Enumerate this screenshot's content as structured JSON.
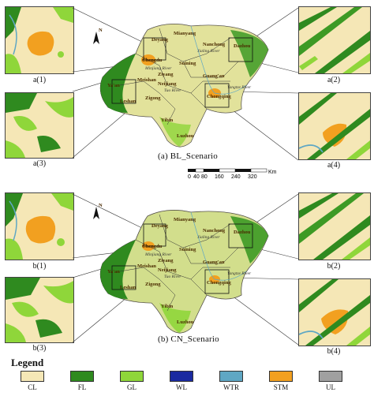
{
  "legend": {
    "title": "Legend",
    "items": [
      {
        "code": "CL",
        "color": "#f5e7b6"
      },
      {
        "code": "FL",
        "color": "#2f8a1f"
      },
      {
        "code": "GL",
        "color": "#8fd63a"
      },
      {
        "code": "WL",
        "color": "#1a2aa0"
      },
      {
        "code": "WTR",
        "color": "#5fa7c4"
      },
      {
        "code": "STM",
        "color": "#f2a020"
      },
      {
        "code": "UL",
        "color": "#a0a0a0"
      }
    ]
  },
  "panels": [
    {
      "caption": "(a)  BL_Scenario",
      "insets": [
        "a(1)",
        "a(2)",
        "a(3)",
        "a(4)"
      ]
    },
    {
      "caption": "(b)  CN_Scenario",
      "insets": [
        "b(1)",
        "b(2)",
        "b(3)",
        "b(4)"
      ]
    }
  ],
  "cities": [
    "Mianyang",
    "Deyang",
    "Nanchong",
    "Dazhou",
    "Chengdu",
    "Suining",
    "Guang'an",
    "Meishan",
    "Ziyang",
    "Chongqing",
    "Ya'an",
    "Leshan",
    "Neijiang",
    "Zigong",
    "Yibin",
    "Luzhou"
  ],
  "rivers": [
    "Jialing River",
    "Minjiang River",
    "Tuo River",
    "Yangtze River"
  ],
  "north_label": "N",
  "scale": {
    "ticks": [
      "0",
      "40",
      "80",
      "160",
      "240",
      "320"
    ],
    "unit": "Km"
  }
}
